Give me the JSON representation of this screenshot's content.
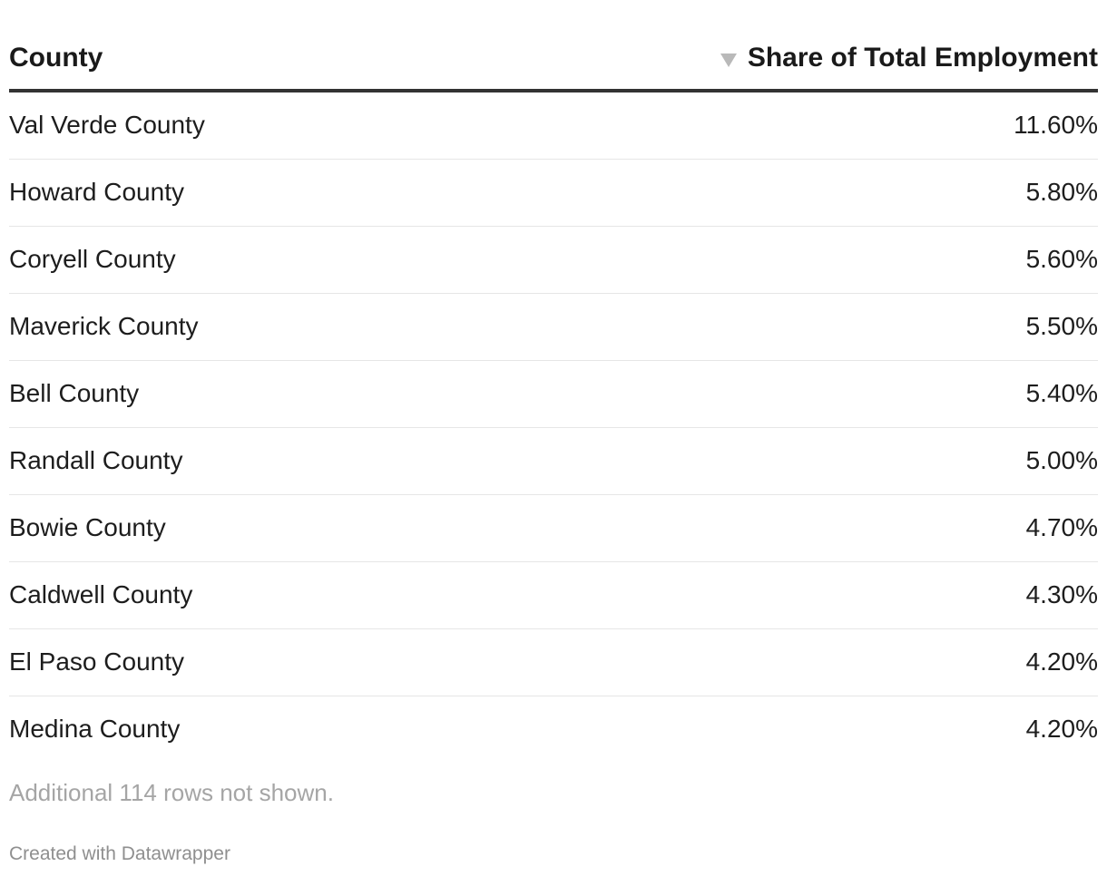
{
  "chart_data": {
    "type": "table",
    "columns": [
      "County",
      "Share of Total Employment"
    ],
    "sorted_column": "Share of Total Employment",
    "sort_direction": "descending",
    "rows": [
      {
        "county": "Val Verde County",
        "share": "11.60%",
        "value": 11.6
      },
      {
        "county": "Howard County",
        "share": "5.80%",
        "value": 5.8
      },
      {
        "county": "Coryell County",
        "share": "5.60%",
        "value": 5.6
      },
      {
        "county": "Maverick County",
        "share": "5.50%",
        "value": 5.5
      },
      {
        "county": "Bell County",
        "share": "5.40%",
        "value": 5.4
      },
      {
        "county": "Randall County",
        "share": "5.00%",
        "value": 5.0
      },
      {
        "county": "Bowie County",
        "share": "4.70%",
        "value": 4.7
      },
      {
        "county": "Caldwell County",
        "share": "4.30%",
        "value": 4.3
      },
      {
        "county": "El Paso County",
        "share": "4.20%",
        "value": 4.2
      },
      {
        "county": "Medina County",
        "share": "4.20%",
        "value": 4.2
      }
    ],
    "note": "Additional 114 rows not shown.",
    "credit": "Created with Datawrapper"
  },
  "icons": {
    "sort": "sort-descending-icon"
  },
  "colors": {
    "text": "#1d1d1d",
    "header_rule": "#333333",
    "row_rule": "#e6e6e6",
    "note": "#a5a5a5",
    "credit": "#8f8f8f",
    "sort_icon": "#b9b9b9"
  }
}
